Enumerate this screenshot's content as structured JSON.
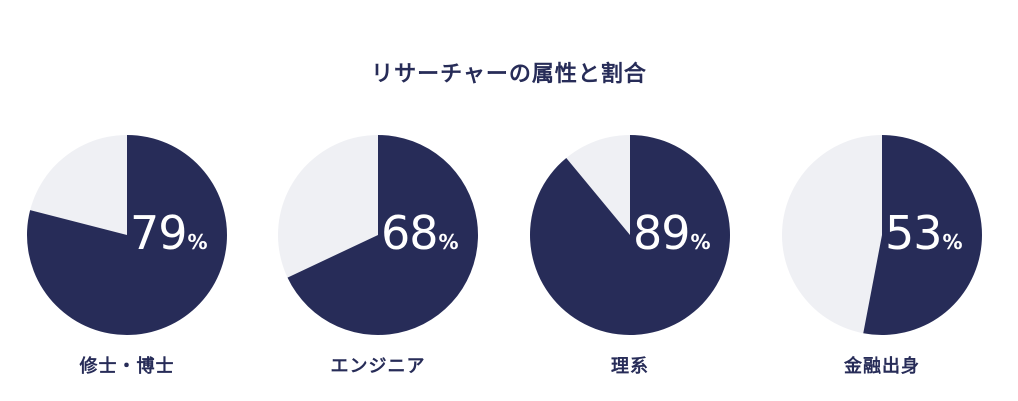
{
  "title": "リサーチャーの属性と割合",
  "colors": {
    "filled": "#272c58",
    "remainder": "#eff0f4",
    "text_dark": "#272c58",
    "text_light": "#ffffff"
  },
  "chart_data": [
    {
      "type": "pie",
      "label": "修士・博士",
      "value": 79,
      "unit": "%",
      "title": "",
      "slices": [
        {
          "name": "",
          "value": 79
        },
        {
          "name": "",
          "value": 21
        }
      ]
    },
    {
      "type": "pie",
      "label": "エンジニア",
      "value": 68,
      "unit": "%",
      "title": "",
      "slices": [
        {
          "name": "",
          "value": 68
        },
        {
          "name": "",
          "value": 32
        }
      ]
    },
    {
      "type": "pie",
      "label": "理系",
      "value": 89,
      "unit": "%",
      "title": "",
      "slices": [
        {
          "name": "",
          "value": 89
        },
        {
          "name": "",
          "value": 11
        }
      ]
    },
    {
      "type": "pie",
      "label": "金融出身",
      "value": 53,
      "unit": "%",
      "title": "",
      "slices": [
        {
          "name": "",
          "value": 53
        },
        {
          "name": "",
          "value": 47
        }
      ]
    }
  ]
}
